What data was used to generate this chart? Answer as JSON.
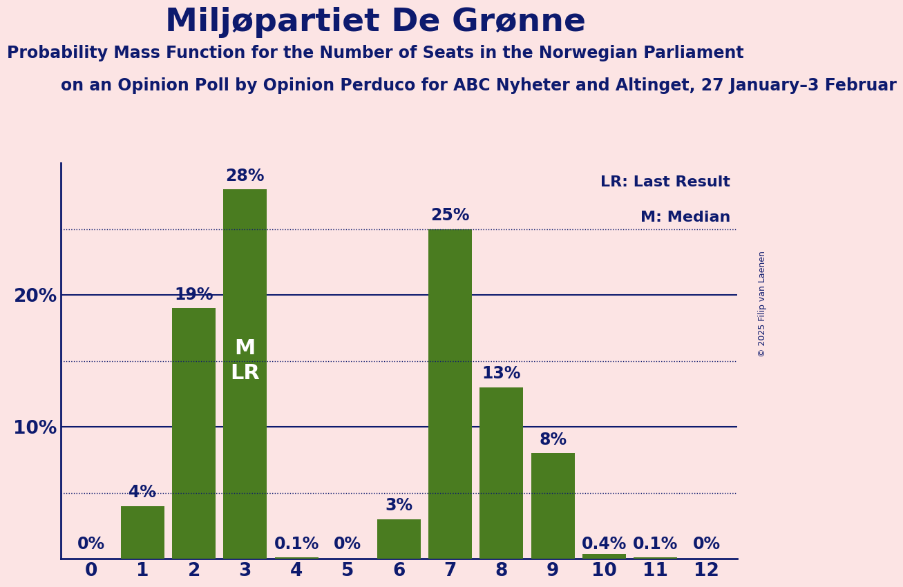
{
  "title": "Miljøpartiet De Grønne",
  "subtitle1": "Probability Mass Function for the Number of Seats in the Norwegian Parliament",
  "subtitle2": "on an Opinion Poll by Opinion Perduco for ABC Nyheter and Altinget, 27 January–3 Februar",
  "copyright": "© 2025 Filip van Laenen",
  "categories": [
    0,
    1,
    2,
    3,
    4,
    5,
    6,
    7,
    8,
    9,
    10,
    11,
    12
  ],
  "values": [
    0.0,
    4.0,
    19.0,
    28.0,
    0.1,
    0.0,
    3.0,
    25.0,
    13.0,
    8.0,
    0.4,
    0.1,
    0.0
  ],
  "bar_color": "#4a7c20",
  "background_color": "#fce4e4",
  "title_color": "#0d1a6e",
  "axis_color": "#0d1a6e",
  "label_color": "#0d1a6e",
  "solid_grid_color": "#0d1a6e",
  "dotted_grid_color": "#0d1a6e",
  "median_seat": 3,
  "last_result_seat": 3,
  "legend_lr": "LR: Last Result",
  "legend_m": "M: Median",
  "ylim_max": 30,
  "solid_yticks": [
    10,
    20
  ],
  "dotted_yticks": [
    5,
    15,
    25
  ],
  "title_fontsize": 34,
  "subtitle1_fontsize": 17,
  "subtitle2_fontsize": 17,
  "tick_fontsize": 19,
  "bar_label_fontsize": 17,
  "legend_fontsize": 16,
  "mlr_fontsize": 22,
  "copyright_fontsize": 9
}
